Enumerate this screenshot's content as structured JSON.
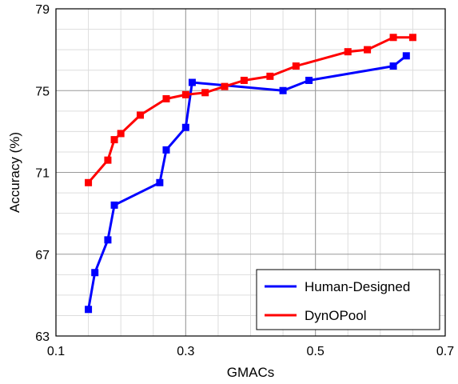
{
  "chart_data": {
    "type": "line",
    "title": "",
    "xlabel": "GMACs",
    "ylabel": "Accuracy (%)",
    "xlim": [
      0.1,
      0.7
    ],
    "ylim": [
      63,
      79
    ],
    "x_ticks": [
      0.1,
      0.3,
      0.5,
      0.7
    ],
    "x_tick_labels": [
      "0.1",
      "0.3",
      "0.5",
      "0.7"
    ],
    "y_ticks": [
      63,
      67,
      71,
      75,
      79
    ],
    "y_tick_labels": [
      "63",
      "67",
      "71",
      "75",
      "79"
    ],
    "grid": true,
    "legend_position": "bottom-right",
    "series": [
      {
        "name": "Human-Designed",
        "color": "#0000ff",
        "marker": "square",
        "points": [
          [
            0.15,
            64.3
          ],
          [
            0.16,
            66.1
          ],
          [
            0.18,
            67.7
          ],
          [
            0.19,
            69.4
          ],
          [
            0.26,
            70.5
          ],
          [
            0.27,
            72.1
          ],
          [
            0.3,
            73.2
          ],
          [
            0.31,
            75.4
          ],
          [
            0.45,
            75.0
          ],
          [
            0.49,
            75.5
          ],
          [
            0.62,
            76.2
          ],
          [
            0.64,
            76.7
          ]
        ]
      },
      {
        "name": "DynOPool",
        "color": "#ff0000",
        "marker": "square",
        "points": [
          [
            0.15,
            70.5
          ],
          [
            0.18,
            71.6
          ],
          [
            0.19,
            72.6
          ],
          [
            0.2,
            72.9
          ],
          [
            0.23,
            73.8
          ],
          [
            0.27,
            74.6
          ],
          [
            0.3,
            74.8
          ],
          [
            0.33,
            74.9
          ],
          [
            0.36,
            75.2
          ],
          [
            0.39,
            75.5
          ],
          [
            0.43,
            75.7
          ],
          [
            0.47,
            76.2
          ],
          [
            0.55,
            76.9
          ],
          [
            0.58,
            77.0
          ],
          [
            0.62,
            77.6
          ],
          [
            0.65,
            77.6
          ]
        ]
      }
    ]
  }
}
